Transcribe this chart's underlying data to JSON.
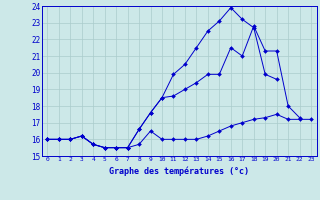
{
  "title": "Graphe des températures (°c)",
  "x_labels": [
    "0",
    "1",
    "2",
    "3",
    "4",
    "5",
    "6",
    "7",
    "8",
    "9",
    "10",
    "11",
    "12",
    "13",
    "14",
    "15",
    "16",
    "17",
    "18",
    "19",
    "20",
    "21",
    "22",
    "23"
  ],
  "ylim": [
    15,
    24
  ],
  "yticks": [
    15,
    16,
    17,
    18,
    19,
    20,
    21,
    22,
    23,
    24
  ],
  "background_color": "#cce8e8",
  "grid_color": "#aacccc",
  "line_color": "#0000cc",
  "series1": [
    16.0,
    16.0,
    16.0,
    16.2,
    15.7,
    15.5,
    15.5,
    15.5,
    15.7,
    16.5,
    16.0,
    16.0,
    16.0,
    16.0,
    16.2,
    16.5,
    16.8,
    17.0,
    17.2,
    17.3,
    17.5,
    17.2,
    17.2,
    17.2
  ],
  "series2": [
    16.0,
    16.0,
    16.0,
    16.2,
    15.7,
    15.5,
    15.5,
    15.5,
    16.6,
    17.6,
    18.5,
    18.6,
    19.0,
    19.4,
    19.9,
    19.9,
    21.5,
    21.0,
    22.8,
    21.3,
    21.3,
    18.0,
    17.3,
    null
  ],
  "series3": [
    16.0,
    16.0,
    16.0,
    16.2,
    15.7,
    15.5,
    15.5,
    15.5,
    16.6,
    17.6,
    18.5,
    19.9,
    20.5,
    21.5,
    22.5,
    23.1,
    23.9,
    23.2,
    22.7,
    19.9,
    19.6,
    null,
    null,
    null
  ]
}
